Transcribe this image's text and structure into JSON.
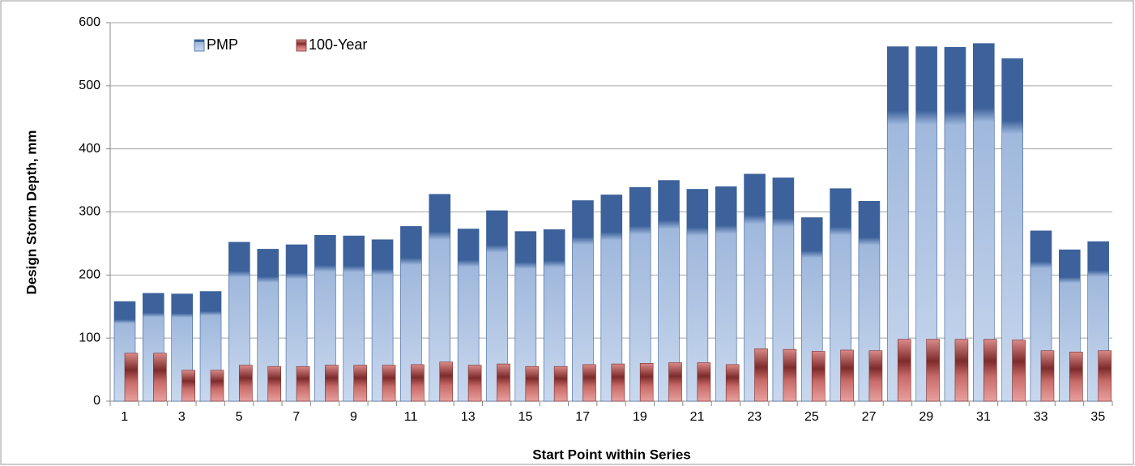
{
  "chart_data": {
    "type": "bar",
    "xlabel": "Start Point within Series",
    "ylabel": "Design Storm Depth, mm",
    "categories": [
      "1",
      null,
      "3",
      null,
      "5",
      null,
      "7",
      null,
      "9",
      null,
      "11",
      null,
      "13",
      null,
      "15",
      null,
      "17",
      null,
      "19",
      null,
      "21",
      null,
      "23",
      null,
      "25",
      null,
      "27",
      null,
      "29",
      null,
      "31",
      null,
      "33",
      null,
      "35"
    ],
    "series": [
      {
        "name": "PMP",
        "color": "#3c619b",
        "values": [
          158,
          171,
          170,
          174,
          252,
          241,
          248,
          263,
          262,
          256,
          277,
          328,
          273,
          302,
          269,
          272,
          318,
          327,
          339,
          350,
          336,
          340,
          360,
          354,
          291,
          337,
          317,
          562,
          562,
          561,
          567,
          543,
          270,
          240,
          253
        ]
      },
      {
        "name": "100-Year",
        "color": "#7d2b2b",
        "values": [
          76,
          76,
          49,
          49,
          57,
          55,
          55,
          57,
          57,
          57,
          58,
          62,
          57,
          59,
          55,
          55,
          58,
          59,
          60,
          61,
          61,
          58,
          83,
          82,
          79,
          81,
          80,
          98,
          98,
          98,
          98,
          97,
          80,
          78,
          80
        ]
      }
    ],
    "ylim": [
      0,
      600
    ],
    "yticks": [
      0,
      100,
      200,
      300,
      400,
      500,
      600
    ],
    "grid": true,
    "legend": "top-left"
  }
}
